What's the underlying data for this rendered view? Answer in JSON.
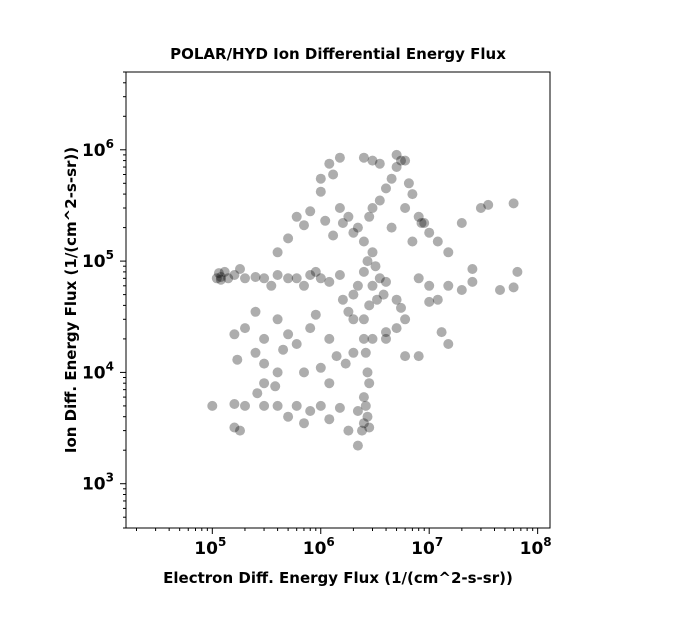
{
  "chart_data": {
    "type": "scatter",
    "title": "POLAR/HYD  Ion Differential Energy Flux",
    "xlabel": "Electron Diff. Energy Flux (1/(cm^2-s-sr))",
    "ylabel": "Ion Diff. Energy Flux (1/(cm^2-s-sr))",
    "xscale": "log",
    "yscale": "log",
    "xlim": [
      16000,
      130000000
    ],
    "ylim": [
      400,
      5000000
    ],
    "x_ticks": [
      {
        "base": "10",
        "exp": "5",
        "value": 100000
      },
      {
        "base": "10",
        "exp": "6",
        "value": 1000000
      },
      {
        "base": "10",
        "exp": "7",
        "value": 10000000
      },
      {
        "base": "10",
        "exp": "8",
        "value": 100000000
      }
    ],
    "y_ticks": [
      {
        "base": "10",
        "exp": "3",
        "value": 1000
      },
      {
        "base": "10",
        "exp": "4",
        "value": 10000
      },
      {
        "base": "10",
        "exp": "5",
        "value": 100000
      },
      {
        "base": "10",
        "exp": "6",
        "value": 1000000
      }
    ],
    "grid": false,
    "marker_color": "#000000",
    "marker_alpha": 0.32,
    "series": [
      {
        "points": [
          [
            3000000.0,
            60000.0
          ],
          [
            2000000.0,
            50000.0
          ],
          [
            2500000.0,
            80000.0
          ],
          [
            3500000.0,
            70000.0
          ],
          [
            2800000.0,
            40000.0
          ],
          [
            1800000.0,
            35000.0
          ],
          [
            3200000.0,
            90000.0
          ],
          [
            4000000.0,
            65000.0
          ],
          [
            1500000.0,
            75000.0
          ],
          [
            2200000.0,
            60000.0
          ],
          [
            2700000.0,
            100000.0
          ],
          [
            3800000.0,
            50000.0
          ],
          [
            2000000.0,
            30000.0
          ],
          [
            3000000.0,
            120000.0
          ],
          [
            1200000.0,
            65000.0
          ],
          [
            1000000.0,
            70000.0
          ],
          [
            800000.0,
            75000.0
          ],
          [
            600000.0,
            70000.0
          ],
          [
            500000.0,
            70000.0
          ],
          [
            400000.0,
            75000.0
          ],
          [
            300000.0,
            70000.0
          ],
          [
            250000.0,
            72000.0
          ],
          [
            200000.0,
            70000.0
          ],
          [
            160000.0,
            75000.0
          ],
          [
            140000.0,
            70000.0
          ],
          [
            120000.0,
            72000.0
          ],
          [
            110000.0,
            70000.0
          ],
          [
            130000.0,
            80000.0
          ],
          [
            180000.0,
            85000.0
          ],
          [
            350000.0,
            60000.0
          ],
          [
            700000.0,
            60000.0
          ],
          [
            900000.0,
            80000.0
          ],
          [
            2500000.0,
            150000.0
          ],
          [
            2200000.0,
            200000.0
          ],
          [
            1800000.0,
            250000.0
          ],
          [
            1500000.0,
            300000.0
          ],
          [
            1600000.0,
            220000.0
          ],
          [
            2000000.0,
            180000.0
          ],
          [
            2800000.0,
            250000.0
          ],
          [
            3500000.0,
            350000.0
          ],
          [
            4000000.0,
            450000.0
          ],
          [
            4500000.0,
            550000.0
          ],
          [
            5000000.0,
            700000.0
          ],
          [
            5500000.0,
            800000.0
          ],
          [
            6000000.0,
            800000.0
          ],
          [
            5000000.0,
            900000.0
          ],
          [
            3000000.0,
            300000.0
          ],
          [
            2500000.0,
            30000.0
          ],
          [
            2500000.0,
            20000.0
          ],
          [
            2600000.0,
            15000.0
          ],
          [
            2700000.0,
            10000.0
          ],
          [
            2800000.0,
            8000.0
          ],
          [
            2500000.0,
            6000.0
          ],
          [
            2600000.0,
            5000.0
          ],
          [
            2700000.0,
            4000.0
          ],
          [
            2500000.0,
            3500.0
          ],
          [
            2400000.0,
            3000.0
          ],
          [
            2800000.0,
            3200.0
          ],
          [
            2200000.0,
            4500.0
          ],
          [
            1500000.0,
            4800.0
          ],
          [
            1000000.0,
            5000.0
          ],
          [
            800000.0,
            4500.0
          ],
          [
            600000.0,
            5000.0
          ],
          [
            400000.0,
            5000.0
          ],
          [
            300000.0,
            5000.0
          ],
          [
            200000.0,
            5000.0
          ],
          [
            160000.0,
            5200.0
          ],
          [
            500000.0,
            4000.0
          ],
          [
            700000.0,
            3500.0
          ],
          [
            1200000.0,
            3800.0
          ],
          [
            1800000.0,
            3000.0
          ],
          [
            1300000.0,
            170000.0
          ],
          [
            1100000.0,
            230000.0
          ],
          [
            4000000.0,
            20000.0
          ],
          [
            5000000.0,
            25000.0
          ],
          [
            6000000.0,
            30000.0
          ],
          [
            3000000.0,
            20000.0
          ],
          [
            250000.0,
            15000.0
          ],
          [
            300000.0,
            20000.0
          ],
          [
            400000.0,
            30000.0
          ],
          [
            200000.0,
            25000.0
          ],
          [
            160000.0,
            22000.0
          ],
          [
            250000.0,
            35000.0
          ],
          [
            400000.0,
            10000.0
          ],
          [
            300000.0,
            8000.0
          ],
          [
            170000.0,
            13000.0
          ],
          [
            180000.0,
            3000.0
          ],
          [
            160000.0,
            3200.0
          ],
          [
            2200000.0,
            2200.0
          ],
          [
            1000000.0,
            420000.0
          ],
          [
            1500000.0,
            850000.0
          ],
          [
            1300000.0,
            600000.0
          ],
          [
            1000000.0,
            550000.0
          ],
          [
            1200000.0,
            750000.0
          ],
          [
            2500000.0,
            850000.0
          ],
          [
            3000000.0,
            800000.0
          ],
          [
            3500000.0,
            750000.0
          ],
          [
            6500000.0,
            500000.0
          ],
          [
            7000000.0,
            400000.0
          ],
          [
            8000000.0,
            250000.0
          ],
          [
            9000000.0,
            220000.0
          ],
          [
            6000000.0,
            300000.0
          ],
          [
            7000000.0,
            150000.0
          ],
          [
            8000000.0,
            70000.0
          ],
          [
            10000000.0,
            60000.0
          ],
          [
            12000000.0,
            150000.0
          ],
          [
            15000000.0,
            120000.0
          ],
          [
            20000000.0,
            220000.0
          ],
          [
            30000000.0,
            300000.0
          ],
          [
            35000000.0,
            320000.0
          ],
          [
            60000000.0,
            330000.0
          ],
          [
            65000000.0,
            80000.0
          ],
          [
            60000000.0,
            58000.0
          ],
          [
            45000000.0,
            55000.0
          ],
          [
            25000000.0,
            85000.0
          ],
          [
            20000000.0,
            55000.0
          ],
          [
            25000000.0,
            65000.0
          ],
          [
            15000000.0,
            60000.0
          ],
          [
            12000000.0,
            45000.0
          ],
          [
            10000000.0,
            43000.0
          ],
          [
            13000000.0,
            23000.0
          ],
          [
            15000000.0,
            18000.0
          ],
          [
            8000000.0,
            14000.0
          ],
          [
            6000000.0,
            14000.0
          ],
          [
            4000000.0,
            23000.0
          ],
          [
            5000000.0,
            45000.0
          ],
          [
            5500000.0,
            38000.0
          ],
          [
            10000000.0,
            180000.0
          ],
          [
            8500000.0,
            220000.0
          ],
          [
            4500000.0,
            200000.0
          ],
          [
            1400000.0,
            14000.0
          ],
          [
            1200000.0,
            20000.0
          ],
          [
            1000000.0,
            11000.0
          ],
          [
            800000.0,
            25000.0
          ],
          [
            600000.0,
            18000.0
          ],
          [
            700000.0,
            10000.0
          ],
          [
            500000.0,
            22000.0
          ],
          [
            900000.0,
            33000.0
          ],
          [
            300000.0,
            12000.0
          ],
          [
            450000.0,
            16000.0
          ],
          [
            260000.0,
            6500.0
          ],
          [
            380000.0,
            7500.0
          ],
          [
            1200000.0,
            8000.0
          ],
          [
            1700000.0,
            12000.0
          ],
          [
            2000000.0,
            15000.0
          ],
          [
            400000.0,
            120000.0
          ],
          [
            500000.0,
            160000.0
          ],
          [
            600000.0,
            250000.0
          ],
          [
            800000.0,
            280000.0
          ],
          [
            700000.0,
            210000.0
          ],
          [
            100000.0,
            5000.0
          ],
          [
            120000.0,
            68000.0
          ],
          [
            115000.0,
            78000.0
          ],
          [
            1600000.0,
            45000.0
          ],
          [
            3300000.0,
            45000.0
          ]
        ]
      }
    ]
  }
}
